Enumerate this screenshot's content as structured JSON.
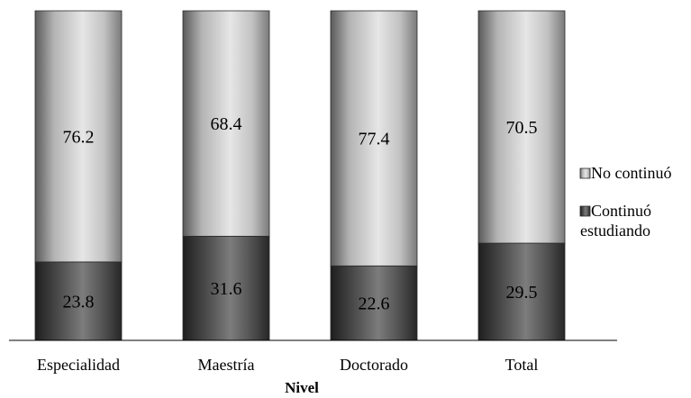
{
  "chart_data": {
    "type": "bar",
    "stacked": true,
    "title": "",
    "xlabel": "Nivel",
    "ylabel": "",
    "ylim": [
      0,
      100
    ],
    "grid": false,
    "legend_placement": "right",
    "categories": [
      "Especialidad",
      "Maestría",
      "Doctorado",
      "Total"
    ],
    "series": [
      {
        "name": "Continuó estudiando",
        "legend_lines": [
          "Continuó",
          "estudiando"
        ],
        "values": [
          23.8,
          31.6,
          22.6,
          29.5
        ],
        "color": "#3a3a3a"
      },
      {
        "name": "No continuó",
        "legend_lines": [
          "No continuó"
        ],
        "values": [
          76.2,
          68.4,
          77.4,
          70.5
        ],
        "color": "#d9d9d9"
      }
    ]
  }
}
